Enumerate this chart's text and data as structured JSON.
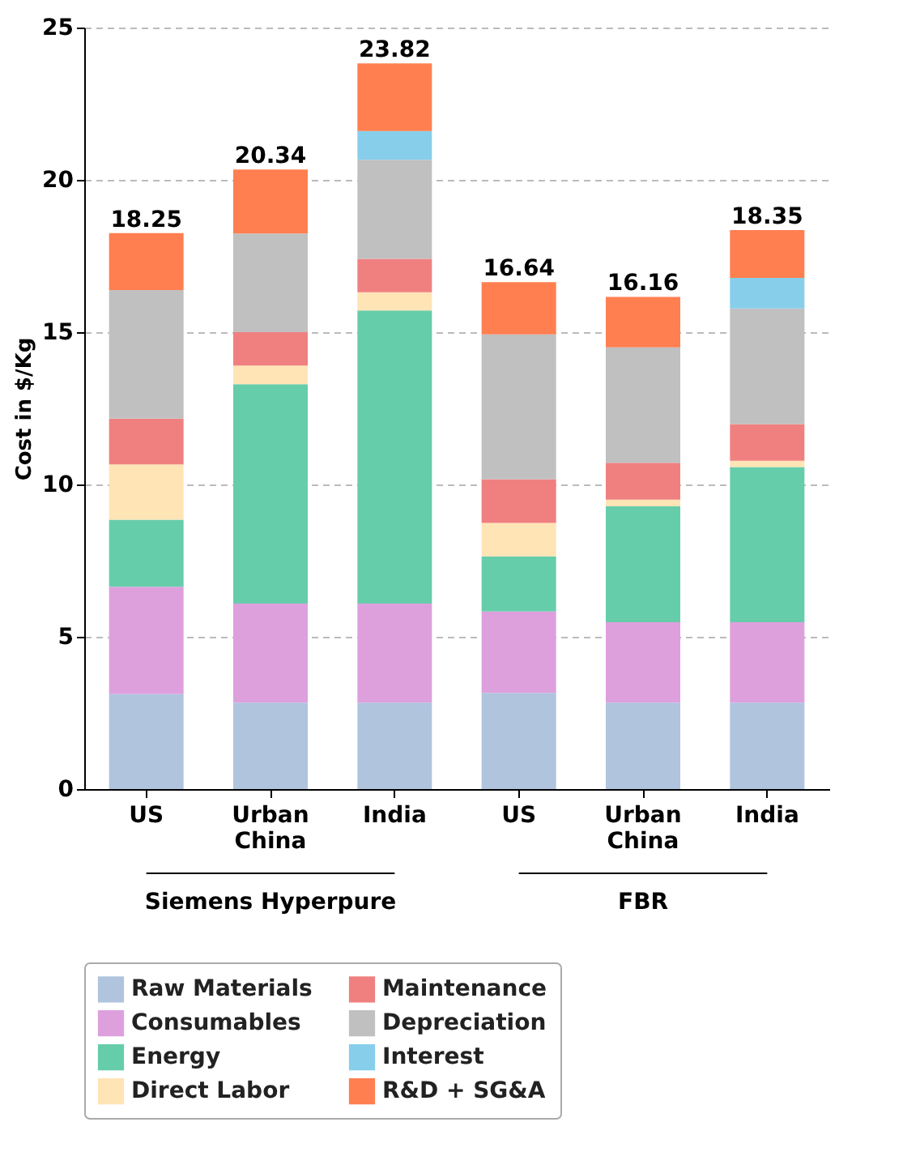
{
  "chart_data": {
    "type": "bar",
    "stacked": true,
    "ylabel": "Cost in $/Kg",
    "categories": [
      "US",
      "Urban China",
      "India",
      "US",
      "Urban China",
      "India"
    ],
    "series": [
      {
        "name": "Raw Materials",
        "color": "#b0c4de",
        "values": [
          3.12,
          2.84,
          2.84,
          3.16,
          2.84,
          2.84
        ]
      },
      {
        "name": "Consumables",
        "color": "#dda0dd",
        "values": [
          3.52,
          3.25,
          3.25,
          2.67,
          2.64,
          2.64
        ]
      },
      {
        "name": "Energy",
        "color": "#66cdaa",
        "values": [
          2.2,
          7.2,
          9.62,
          1.81,
          3.8,
          5.09
        ]
      },
      {
        "name": "Direct Labor",
        "color": "#ffe4b5",
        "values": [
          1.82,
          0.61,
          0.6,
          1.1,
          0.22,
          0.21
        ]
      },
      {
        "name": "Maintenance",
        "color": "#f08080",
        "values": [
          1.5,
          1.1,
          1.1,
          1.43,
          1.21,
          1.2
        ]
      },
      {
        "name": "Depreciation",
        "color": "#c0c0c0",
        "values": [
          4.22,
          3.24,
          3.25,
          4.76,
          3.79,
          3.8
        ]
      },
      {
        "name": "Interest",
        "color": "#87ceeb",
        "values": [
          0,
          0,
          0.94,
          0,
          0,
          1.0
        ]
      },
      {
        "name": "R&D + SG&A",
        "color": "#ff7f50",
        "values": [
          1.87,
          2.1,
          2.22,
          1.71,
          1.66,
          1.57
        ]
      }
    ],
    "totals": [
      "18.25",
      "20.34",
      "23.82",
      "16.64",
      "16.16",
      "18.35"
    ],
    "annotations": [
      "Siemens Hyperpure",
      "FBR"
    ],
    "ylim": [
      0,
      25
    ],
    "yticks": [
      0,
      5,
      10,
      15,
      20,
      25
    ],
    "grid": "y",
    "legend": "bottom"
  }
}
